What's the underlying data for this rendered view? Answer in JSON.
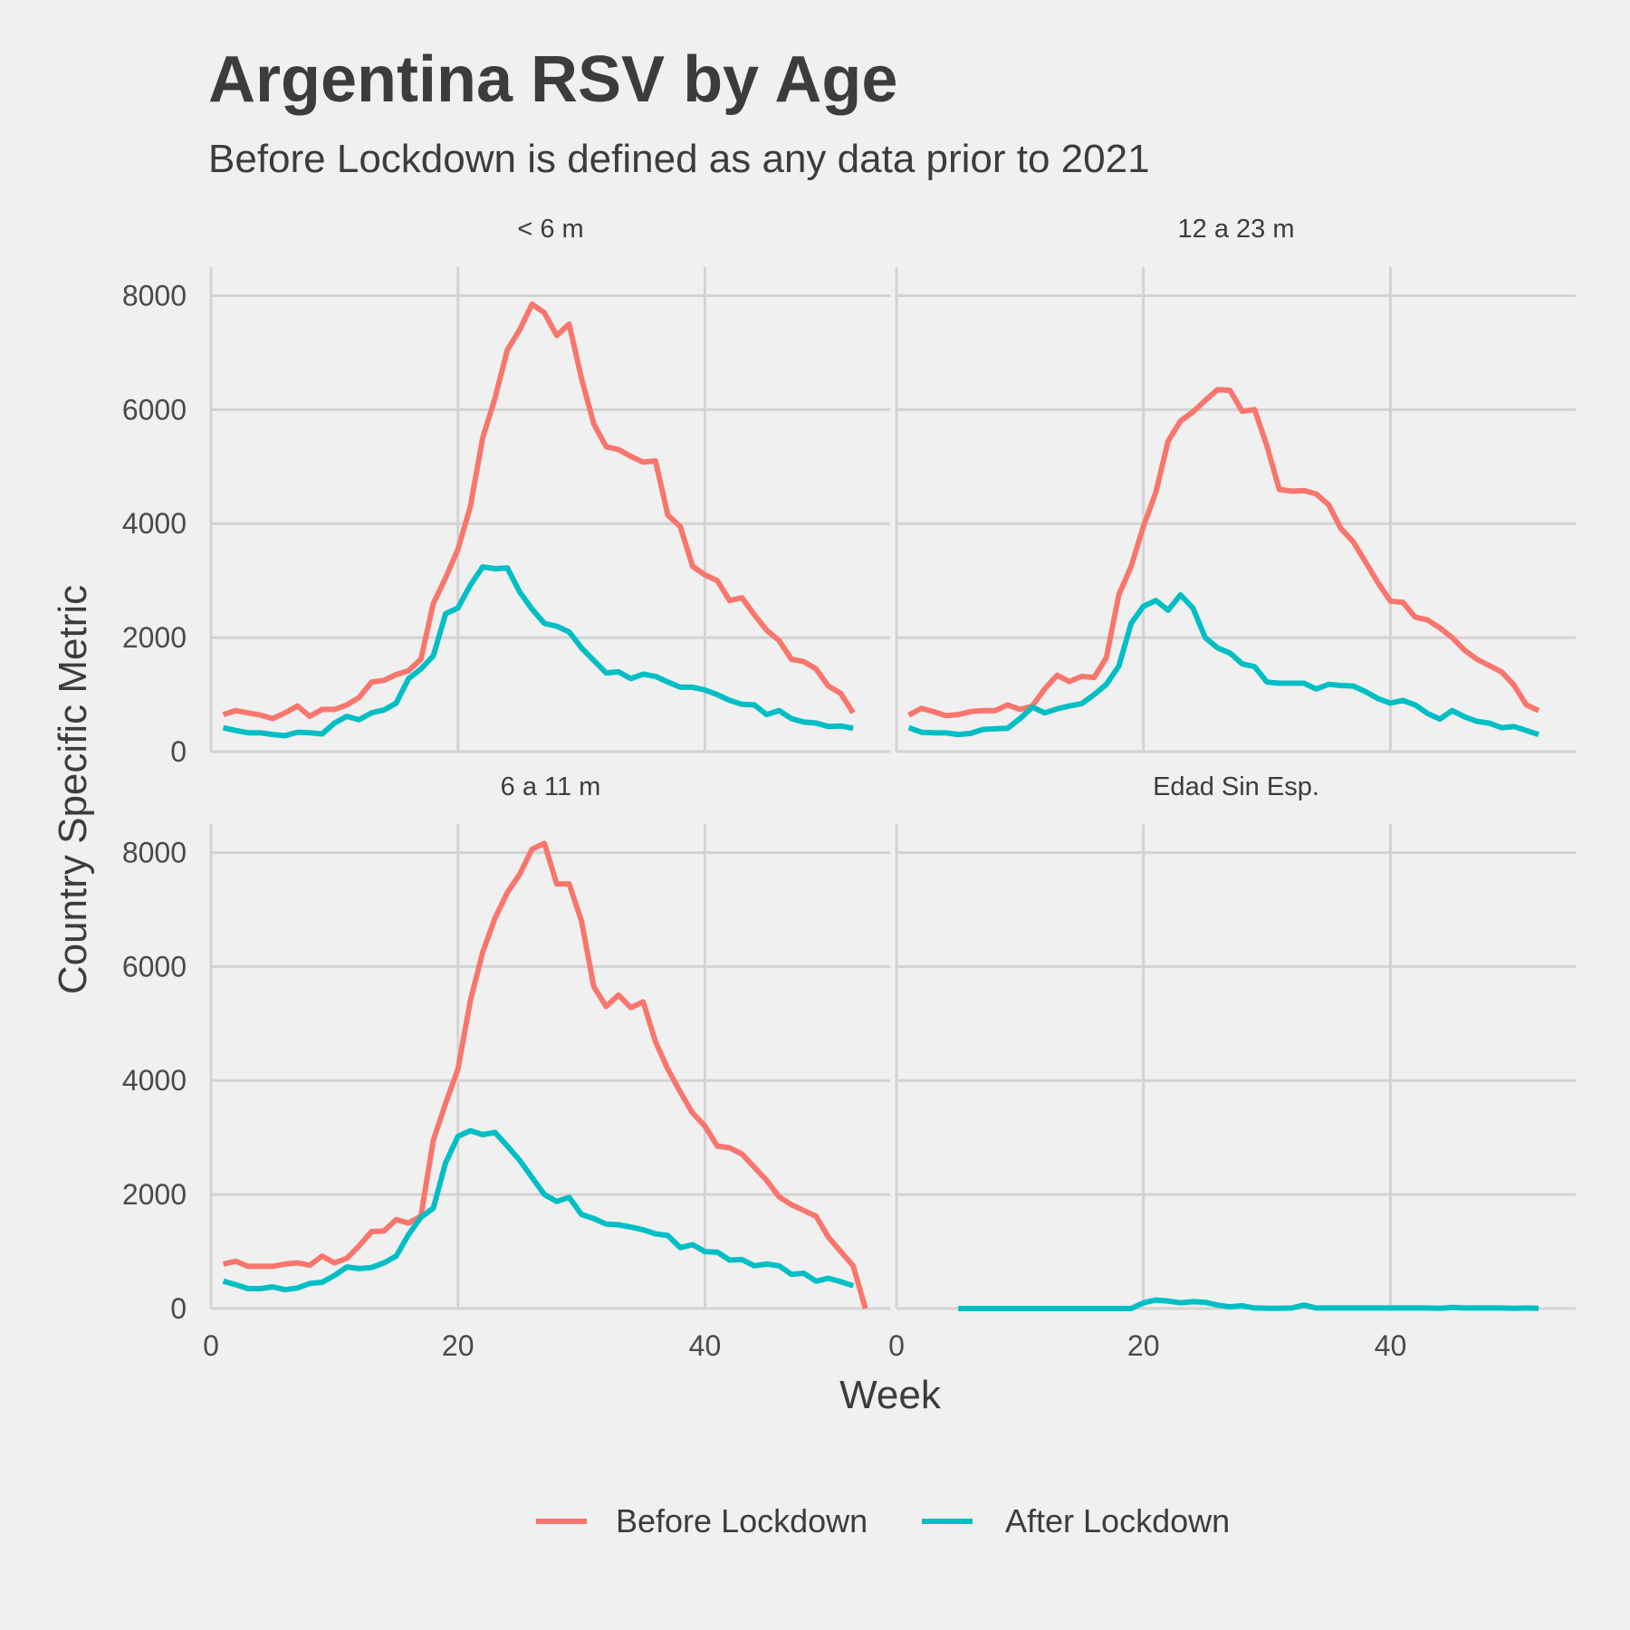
{
  "chart_data": {
    "type": "line",
    "title": "Argentina RSV by Age",
    "subtitle": "Before Lockdown is defined as any data prior to 2021",
    "xlabel": "Week",
    "ylabel": "Country Specific Metric",
    "xlim": [
      0,
      55
    ],
    "ylim": [
      0,
      8500
    ],
    "x_ticks": [
      0,
      20,
      40
    ],
    "y_ticks": [
      0,
      2000,
      4000,
      6000,
      8000
    ],
    "grid": true,
    "legend_position": "bottom",
    "legend": [
      {
        "name": "Before Lockdown",
        "color": "#F8766D"
      },
      {
        "name": "After Lockdown",
        "color": "#00BFC4"
      }
    ],
    "panels": [
      {
        "label": "< 6 m",
        "series": [
          {
            "name": "Before Lockdown",
            "x": [
              1,
              2,
              3,
              4,
              5,
              6,
              7,
              8,
              9,
              10,
              11,
              12,
              13,
              14,
              15,
              16,
              17,
              18,
              19,
              20,
              21,
              22,
              23,
              24,
              25,
              26,
              27,
              28,
              29,
              30,
              31,
              32,
              33,
              34,
              35,
              36,
              37,
              38,
              39,
              40,
              41,
              42,
              43,
              44,
              45,
              46,
              47,
              48,
              49,
              50,
              51,
              52
            ],
            "values": [
              650,
              720,
              680,
              640,
              580,
              680,
              800,
              620,
              740,
              740,
              820,
              950,
              1220,
              1250,
              1350,
              1420,
              1620,
              2600,
              3050,
              3550,
              4300,
              5500,
              6200,
              7050,
              7400,
              7850,
              7700,
              7300,
              7500,
              6550,
              5750,
              5350,
              5300,
              5180,
              5080,
              5100,
              4150,
              3950,
              3250,
              3100,
              3000,
              2650,
              2700,
              2400,
              2130,
              1950,
              1620,
              1580,
              1450,
              1150,
              1020,
              680
            ]
          },
          {
            "name": "After Lockdown",
            "x": [
              1,
              2,
              3,
              4,
              5,
              6,
              7,
              8,
              9,
              10,
              11,
              12,
              13,
              14,
              15,
              16,
              17,
              18,
              19,
              20,
              21,
              22,
              23,
              24,
              25,
              26,
              27,
              28,
              29,
              30,
              31,
              32,
              33,
              34,
              35,
              36,
              37,
              38,
              39,
              40,
              41,
              42,
              43,
              44,
              45,
              46,
              47,
              48,
              49,
              50,
              51,
              52
            ],
            "values": [
              420,
              370,
              330,
              330,
              300,
              280,
              340,
              330,
              310,
              500,
              620,
              560,
              680,
              730,
              850,
              1280,
              1450,
              1680,
              2420,
              2520,
              2920,
              3240,
              3210,
              3220,
              2800,
              2500,
              2250,
              2200,
              2100,
              1820,
              1600,
              1380,
              1400,
              1280,
              1360,
              1320,
              1220,
              1130,
              1130,
              1080,
              1000,
              900,
              830,
              820,
              650,
              720,
              580,
              520,
              500,
              440,
              450,
              410
            ]
          }
        ]
      },
      {
        "label": "12 a 23 m",
        "series": [
          {
            "name": "Before Lockdown",
            "x": [
              1,
              2,
              3,
              4,
              5,
              6,
              7,
              8,
              9,
              10,
              11,
              12,
              13,
              14,
              15,
              16,
              17,
              18,
              19,
              20,
              21,
              22,
              23,
              24,
              25,
              26,
              27,
              28,
              29,
              30,
              31,
              32,
              33,
              34,
              35,
              36,
              37,
              38,
              39,
              40,
              41,
              42,
              43,
              44,
              45,
              46,
              47,
              48,
              49,
              50,
              51,
              52
            ],
            "values": [
              640,
              760,
              700,
              630,
              650,
              700,
              720,
              720,
              820,
              740,
              800,
              1100,
              1340,
              1230,
              1320,
              1300,
              1650,
              2750,
              3250,
              3950,
              4550,
              5450,
              5800,
              5960,
              6160,
              6350,
              6340,
              5970,
              6000,
              5360,
              4600,
              4570,
              4580,
              4520,
              4330,
              3910,
              3680,
              3320,
              2960,
              2640,
              2620,
              2360,
              2310,
              2170,
              2000,
              1780,
              1620,
              1510,
              1400,
              1170,
              820,
              720
            ]
          },
          {
            "name": "After Lockdown",
            "x": [
              1,
              2,
              3,
              4,
              5,
              6,
              7,
              8,
              9,
              10,
              11,
              12,
              13,
              14,
              15,
              16,
              17,
              18,
              19,
              20,
              21,
              22,
              23,
              24,
              25,
              26,
              27,
              28,
              29,
              30,
              31,
              32,
              33,
              34,
              35,
              36,
              37,
              38,
              39,
              40,
              41,
              42,
              43,
              44,
              45,
              46,
              47,
              48,
              49,
              50,
              51,
              52
            ],
            "values": [
              420,
              340,
              330,
              330,
              300,
              320,
              390,
              400,
              410,
              580,
              780,
              680,
              750,
              800,
              840,
              1000,
              1180,
              1500,
              2250,
              2550,
              2650,
              2480,
              2750,
              2520,
              2000,
              1820,
              1730,
              1540,
              1490,
              1220,
              1200,
              1200,
              1200,
              1100,
              1180,
              1160,
              1150,
              1050,
              930,
              850,
              900,
              820,
              670,
              570,
              720,
              610,
              530,
              500,
              420,
              440,
              370,
              300
            ]
          }
        ]
      },
      {
        "label": "6 a 11 m",
        "series": [
          {
            "name": "Before Lockdown",
            "x": [
              1,
              2,
              3,
              4,
              5,
              6,
              7,
              8,
              9,
              10,
              11,
              12,
              13,
              14,
              15,
              16,
              17,
              18,
              19,
              20,
              21,
              22,
              23,
              24,
              25,
              26,
              27,
              28,
              29,
              30,
              31,
              32,
              33,
              34,
              35,
              36,
              37,
              38,
              39,
              40,
              41,
              42,
              43,
              44,
              45,
              46,
              47,
              48,
              49,
              50,
              51,
              52,
              53
            ],
            "values": [
              780,
              830,
              740,
              740,
              740,
              780,
              800,
              760,
              920,
              800,
              880,
              1100,
              1350,
              1360,
              1560,
              1500,
              1620,
              2950,
              3600,
              4200,
              5400,
              6250,
              6850,
              7300,
              7620,
              8060,
              8160,
              7450,
              7450,
              6800,
              5650,
              5300,
              5500,
              5280,
              5380,
              4680,
              4200,
              3800,
              3430,
              3200,
              2850,
              2820,
              2710,
              2480,
              2250,
              1960,
              1820,
              1720,
              1620,
              1250,
              1000,
              750,
              0
            ]
          },
          {
            "name": "After Lockdown",
            "x": [
              1,
              2,
              3,
              4,
              5,
              6,
              7,
              8,
              9,
              10,
              11,
              12,
              13,
              14,
              15,
              16,
              17,
              18,
              19,
              20,
              21,
              22,
              23,
              24,
              25,
              26,
              27,
              28,
              29,
              30,
              31,
              32,
              33,
              34,
              35,
              36,
              37,
              38,
              39,
              40,
              41,
              42,
              43,
              44,
              45,
              46,
              47,
              48,
              49,
              50,
              51,
              52
            ],
            "values": [
              480,
              420,
              350,
              350,
              380,
              330,
              360,
              440,
              460,
              580,
              730,
              700,
              720,
              800,
              920,
              1300,
              1600,
              1760,
              2560,
              3020,
              3120,
              3050,
              3090,
              2850,
              2600,
              2300,
              2000,
              1880,
              1950,
              1650,
              1580,
              1480,
              1470,
              1430,
              1380,
              1310,
              1280,
              1070,
              1120,
              1000,
              990,
              850,
              860,
              750,
              780,
              750,
              600,
              620,
              480,
              530,
              470,
              400
            ]
          }
        ]
      },
      {
        "label": "Edad Sin Esp.",
        "series": [
          {
            "name": "Before Lockdown",
            "x": [],
            "values": []
          },
          {
            "name": "After Lockdown",
            "x": [
              5,
              6,
              7,
              8,
              9,
              10,
              11,
              12,
              13,
              14,
              15,
              16,
              17,
              18,
              19,
              20,
              21,
              22,
              23,
              24,
              25,
              26,
              27,
              28,
              29,
              30,
              31,
              32,
              33,
              34,
              35,
              36,
              37,
              38,
              39,
              40,
              41,
              42,
              43,
              44,
              45,
              46,
              47,
              48,
              49,
              50,
              51,
              52
            ],
            "values": [
              0,
              0,
              0,
              0,
              0,
              0,
              0,
              0,
              0,
              0,
              0,
              0,
              0,
              0,
              0,
              100,
              150,
              130,
              100,
              120,
              110,
              60,
              30,
              50,
              10,
              5,
              5,
              10,
              60,
              10,
              10,
              10,
              10,
              10,
              10,
              10,
              10,
              10,
              10,
              5,
              20,
              10,
              10,
              10,
              10,
              5,
              10,
              5
            ]
          }
        ]
      }
    ]
  }
}
